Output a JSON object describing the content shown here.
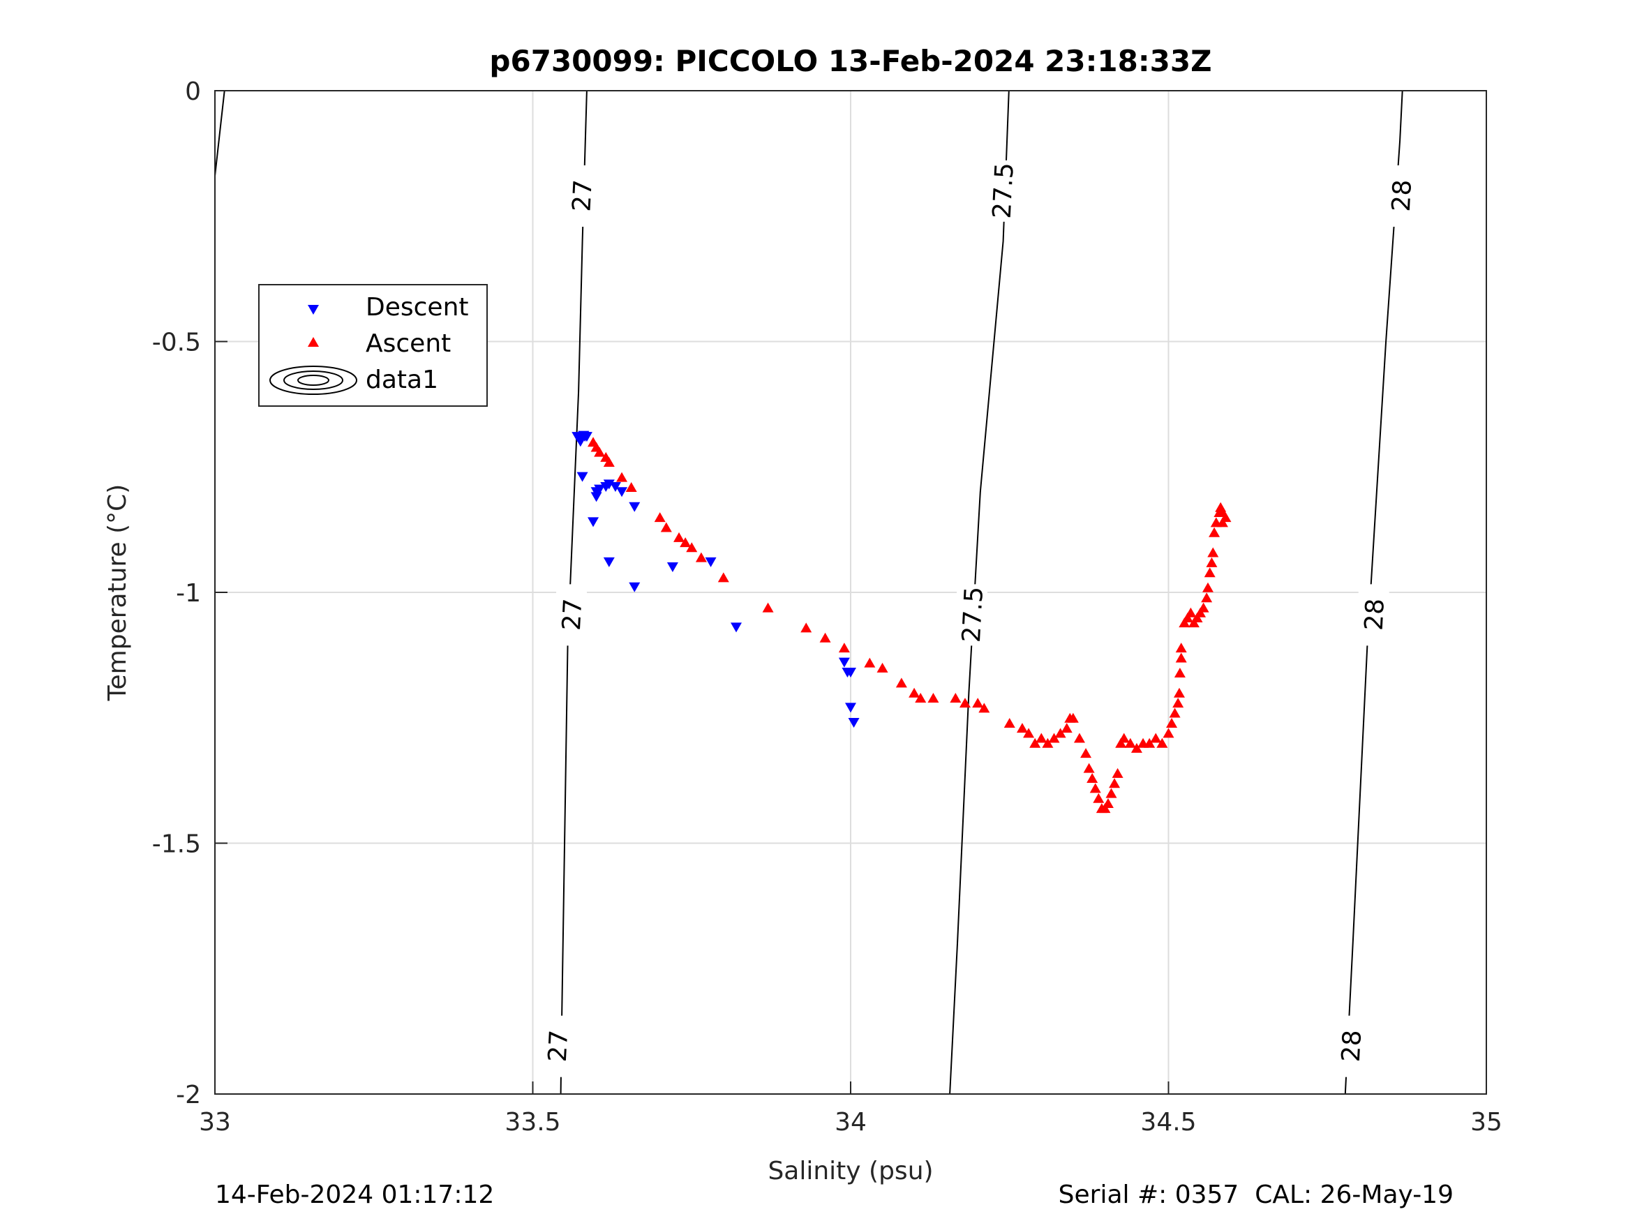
{
  "chart_data": {
    "type": "scatter",
    "title": "p6730099: PICCOLO 13-Feb-2024 23:18:33Z",
    "xlabel": "Salinity (psu)",
    "ylabel": "Temperature (°C)",
    "xlim": [
      33,
      35
    ],
    "ylim": [
      -2,
      0
    ],
    "xticks": [
      "33",
      "33.5",
      "34",
      "34.5",
      "35"
    ],
    "yticks": [
      "0",
      "-0.5",
      "-1",
      "-1.5",
      "-2"
    ],
    "grid": true,
    "legend": {
      "placement": "upper-left",
      "entries": [
        "Descent",
        "Ascent",
        "data1"
      ]
    },
    "colors": {
      "descent": "#0000ff",
      "ascent": "#ff0000",
      "contour": "#000000",
      "grid": "#dddddd"
    },
    "contours": [
      {
        "label": "27",
        "points": [
          [
            33.544,
            -2.0
          ],
          [
            33.545,
            -1.9
          ],
          [
            33.555,
            -1.1
          ],
          [
            33.572,
            -0.6
          ],
          [
            33.578,
            -0.3
          ],
          [
            33.585,
            0.0
          ]
        ]
      },
      {
        "label": "27.5",
        "points": [
          [
            34.156,
            -2.0
          ],
          [
            34.168,
            -1.7
          ],
          [
            34.186,
            -1.2
          ],
          [
            34.204,
            -0.8
          ],
          [
            34.24,
            -0.3
          ],
          [
            34.249,
            0.0
          ]
        ]
      },
      {
        "label": "28",
        "points": [
          [
            34.778,
            -2.0
          ],
          [
            34.79,
            -1.7
          ],
          [
            34.813,
            -1.1
          ],
          [
            34.842,
            -0.5
          ],
          [
            34.864,
            -0.1
          ],
          [
            34.868,
            0.0
          ]
        ]
      },
      {
        "label": "",
        "points": [
          [
            33.0,
            -0.17
          ],
          [
            33.015,
            0.0
          ]
        ]
      }
    ],
    "contour_labels": [
      {
        "text": "27",
        "x": 33.577,
        "y": -0.21
      },
      {
        "text": "27.5",
        "x": 34.239,
        "y": -0.2
      },
      {
        "text": "28",
        "x": 34.866,
        "y": -0.21
      },
      {
        "text": "27",
        "x": 33.561,
        "y": -1.045
      },
      {
        "text": "27.5",
        "x": 34.191,
        "y": -1.045
      },
      {
        "text": "28",
        "x": 34.823,
        "y": -1.045
      },
      {
        "text": "27",
        "x": 33.539,
        "y": -1.905
      },
      {
        "text": "28",
        "x": 34.787,
        "y": -1.905
      }
    ],
    "series": [
      {
        "name": "Descent",
        "marker": "triangle-down",
        "points": [
          [
            33.57,
            -0.69
          ],
          [
            33.575,
            -0.695
          ],
          [
            33.58,
            -0.688
          ],
          [
            33.585,
            -0.69
          ],
          [
            33.575,
            -0.7
          ],
          [
            33.582,
            -0.69
          ],
          [
            33.578,
            -0.77
          ],
          [
            33.6,
            -0.8
          ],
          [
            33.605,
            -0.795
          ],
          [
            33.615,
            -0.79
          ],
          [
            33.62,
            -0.785
          ],
          [
            33.63,
            -0.79
          ],
          [
            33.64,
            -0.8
          ],
          [
            33.66,
            -0.83
          ],
          [
            33.595,
            -0.86
          ],
          [
            33.62,
            -0.94
          ],
          [
            33.66,
            -0.99
          ],
          [
            33.72,
            -0.95
          ],
          [
            33.78,
            -0.94
          ],
          [
            33.82,
            -1.07
          ],
          [
            33.99,
            -1.14
          ],
          [
            33.995,
            -1.16
          ],
          [
            34.0,
            -1.16
          ],
          [
            34.0,
            -1.23
          ],
          [
            34.005,
            -1.26
          ],
          [
            33.6,
            -0.81
          ]
        ]
      },
      {
        "name": "Ascent",
        "marker": "triangle-up",
        "points": [
          [
            33.595,
            -0.7
          ],
          [
            33.6,
            -0.71
          ],
          [
            33.605,
            -0.72
          ],
          [
            33.615,
            -0.73
          ],
          [
            33.62,
            -0.74
          ],
          [
            33.64,
            -0.77
          ],
          [
            33.655,
            -0.79
          ],
          [
            33.7,
            -0.85
          ],
          [
            33.71,
            -0.87
          ],
          [
            33.73,
            -0.89
          ],
          [
            33.74,
            -0.9
          ],
          [
            33.75,
            -0.91
          ],
          [
            33.765,
            -0.93
          ],
          [
            33.8,
            -0.97
          ],
          [
            33.87,
            -1.03
          ],
          [
            33.93,
            -1.07
          ],
          [
            33.96,
            -1.09
          ],
          [
            33.99,
            -1.11
          ],
          [
            34.03,
            -1.14
          ],
          [
            34.05,
            -1.15
          ],
          [
            34.08,
            -1.18
          ],
          [
            34.1,
            -1.2
          ],
          [
            34.11,
            -1.21
          ],
          [
            34.13,
            -1.21
          ],
          [
            34.165,
            -1.21
          ],
          [
            34.18,
            -1.22
          ],
          [
            34.2,
            -1.22
          ],
          [
            34.21,
            -1.23
          ],
          [
            34.25,
            -1.26
          ],
          [
            34.27,
            -1.27
          ],
          [
            34.28,
            -1.28
          ],
          [
            34.29,
            -1.3
          ],
          [
            34.3,
            -1.29
          ],
          [
            34.31,
            -1.3
          ],
          [
            34.32,
            -1.29
          ],
          [
            34.33,
            -1.28
          ],
          [
            34.34,
            -1.27
          ],
          [
            34.345,
            -1.25
          ],
          [
            34.35,
            -1.25
          ],
          [
            34.36,
            -1.29
          ],
          [
            34.37,
            -1.32
          ],
          [
            34.375,
            -1.35
          ],
          [
            34.38,
            -1.37
          ],
          [
            34.385,
            -1.39
          ],
          [
            34.39,
            -1.41
          ],
          [
            34.395,
            -1.43
          ],
          [
            34.4,
            -1.43
          ],
          [
            34.405,
            -1.42
          ],
          [
            34.41,
            -1.4
          ],
          [
            34.415,
            -1.38
          ],
          [
            34.42,
            -1.36
          ],
          [
            34.425,
            -1.3
          ],
          [
            34.43,
            -1.29
          ],
          [
            34.44,
            -1.3
          ],
          [
            34.45,
            -1.31
          ],
          [
            34.46,
            -1.3
          ],
          [
            34.47,
            -1.3
          ],
          [
            34.48,
            -1.29
          ],
          [
            34.49,
            -1.3
          ],
          [
            34.5,
            -1.28
          ],
          [
            34.505,
            -1.26
          ],
          [
            34.51,
            -1.24
          ],
          [
            34.515,
            -1.22
          ],
          [
            34.517,
            -1.2
          ],
          [
            34.518,
            -1.16
          ],
          [
            34.52,
            -1.13
          ],
          [
            34.52,
            -1.11
          ],
          [
            34.525,
            -1.06
          ],
          [
            34.53,
            -1.05
          ],
          [
            34.535,
            -1.04
          ],
          [
            34.54,
            -1.06
          ],
          [
            34.545,
            -1.05
          ],
          [
            34.55,
            -1.04
          ],
          [
            34.555,
            -1.03
          ],
          [
            34.56,
            -1.01
          ],
          [
            34.562,
            -0.99
          ],
          [
            34.565,
            -0.96
          ],
          [
            34.568,
            -0.94
          ],
          [
            34.57,
            -0.92
          ],
          [
            34.572,
            -0.88
          ],
          [
            34.575,
            -0.86
          ],
          [
            34.58,
            -0.84
          ],
          [
            34.582,
            -0.83
          ],
          [
            34.585,
            -0.84
          ],
          [
            34.585,
            -0.86
          ],
          [
            34.59,
            -0.85
          ]
        ]
      }
    ]
  },
  "footer": {
    "left": "14-Feb-2024 01:17:12",
    "right": "Serial #: 0357  CAL: 26-May-19"
  }
}
